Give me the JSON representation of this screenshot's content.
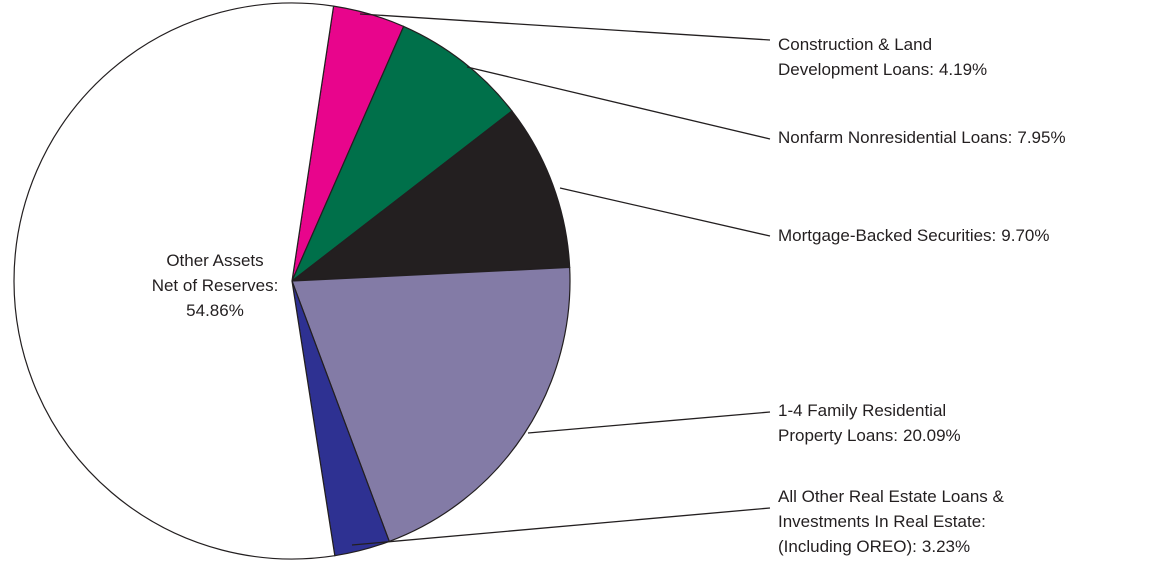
{
  "chart_data": {
    "type": "pie",
    "categories": [
      [
        "Construction & Land",
        "Development Loans:"
      ],
      [
        "Nonfarm Nonresidential Loans:"
      ],
      [
        "Mortgage-Backed Securities:"
      ],
      [
        "1-4 Family Residential",
        "Property Loans:"
      ],
      [
        "All Other Real Estate Loans &",
        "Investments In Real Estate:",
        "(Including OREO):"
      ],
      [
        "Other Assets",
        "Net of Reserves:"
      ]
    ],
    "values": [
      4.19,
      7.95,
      9.7,
      20.09,
      3.23,
      54.86
    ],
    "value_labels": [
      "4.19%",
      "7.95%",
      "9.70%",
      "20.09%",
      "3.23%",
      "54.86%"
    ],
    "colors": [
      "#e8058c",
      "#00704a",
      "#231f20",
      "#837ba6",
      "#2e3192",
      "#ffffff"
    ]
  }
}
